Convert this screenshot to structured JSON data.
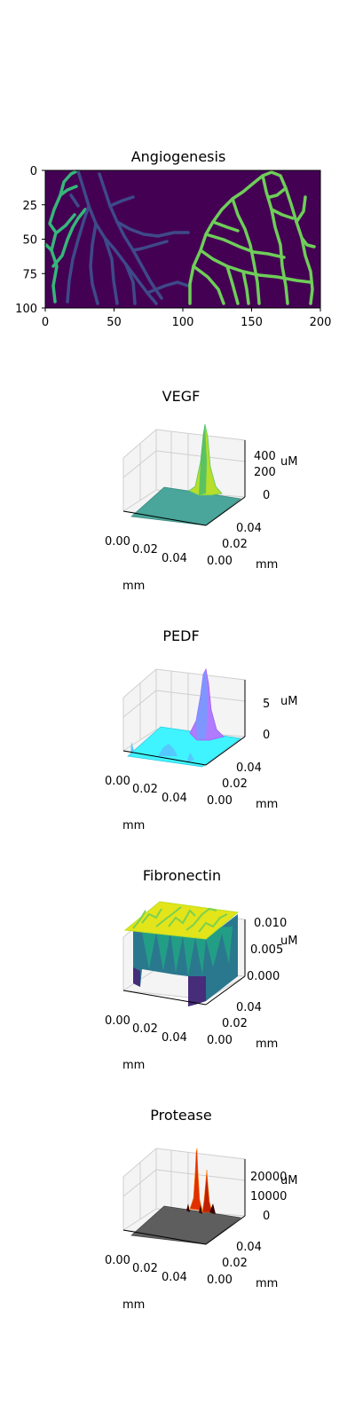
{
  "figure": {
    "background": "#ffffff"
  },
  "chart_data": [
    {
      "type": "heatmap",
      "title": "Angiogenesis",
      "x_ticks": [
        "0",
        "50",
        "100",
        "150",
        "200"
      ],
      "y_ticks": [
        "0",
        "25",
        "50",
        "75",
        "100"
      ],
      "xlim": [
        0,
        200
      ],
      "ylim": [
        100,
        0
      ],
      "colormap": "viridis",
      "colors": {
        "background": "#440154",
        "left_vessels": "#35b779",
        "middle_vessels": "#3e4a89",
        "right_vessels": "#6ece58"
      },
      "regions": [
        {
          "name": "left network",
          "x_range": [
            0,
            30
          ],
          "y_range": [
            0,
            100
          ]
        },
        {
          "name": "middle network",
          "x_range": [
            20,
            105
          ],
          "y_range": [
            0,
            100
          ]
        },
        {
          "name": "right network",
          "x_range": [
            105,
            200
          ],
          "y_range": [
            0,
            100
          ]
        }
      ]
    },
    {
      "type": "surface3d",
      "title": "VEGF",
      "xlabel": "mm",
      "zlabel": "uM",
      "x_ticks": [
        "0.00",
        "0.02",
        "0.04"
      ],
      "y_ticks": [
        "0.00",
        "0.02",
        "0.04"
      ],
      "z_ticks": [
        "0",
        "200",
        "400"
      ],
      "zlim": [
        0,
        450
      ],
      "peak": {
        "x": 0.04,
        "y": 0.045,
        "z": 460
      },
      "colormap": "viridis"
    },
    {
      "type": "surface3d",
      "title": "PEDF",
      "xlabel": "mm",
      "zlabel": "uM",
      "x_ticks": [
        "0.00",
        "0.02",
        "0.04"
      ],
      "y_ticks": [
        "0.00",
        "0.02",
        "0.04"
      ],
      "z_ticks": [
        "0",
        "5"
      ],
      "zlim": [
        0,
        8
      ],
      "peak": {
        "x": 0.04,
        "y": 0.045,
        "z": 8
      },
      "colormap": "cool"
    },
    {
      "type": "surface3d",
      "title": "Fibronectin",
      "xlabel": "mm",
      "zlabel": "uM",
      "x_ticks": [
        "0.00",
        "0.02",
        "0.04"
      ],
      "y_ticks": [
        "0.00",
        "0.02",
        "0.04"
      ],
      "z_ticks": [
        "0.000",
        "0.005",
        "0.010"
      ],
      "zlim": [
        0,
        0.01
      ],
      "colormap": "viridis"
    },
    {
      "type": "surface3d",
      "title": "Protease",
      "xlabel": "mm",
      "zlabel": "uM",
      "x_ticks": [
        "0.00",
        "0.02",
        "0.04"
      ],
      "y_ticks": [
        "0.00",
        "0.02",
        "0.04"
      ],
      "z_ticks": [
        "0",
        "10000",
        "20000"
      ],
      "zlim": [
        0,
        25000
      ],
      "peaks": [
        {
          "x": 0.04,
          "y": 0.045,
          "z": 25000
        },
        {
          "x": 0.045,
          "y": 0.045,
          "z": 18000
        }
      ],
      "colormap": "hot"
    }
  ]
}
